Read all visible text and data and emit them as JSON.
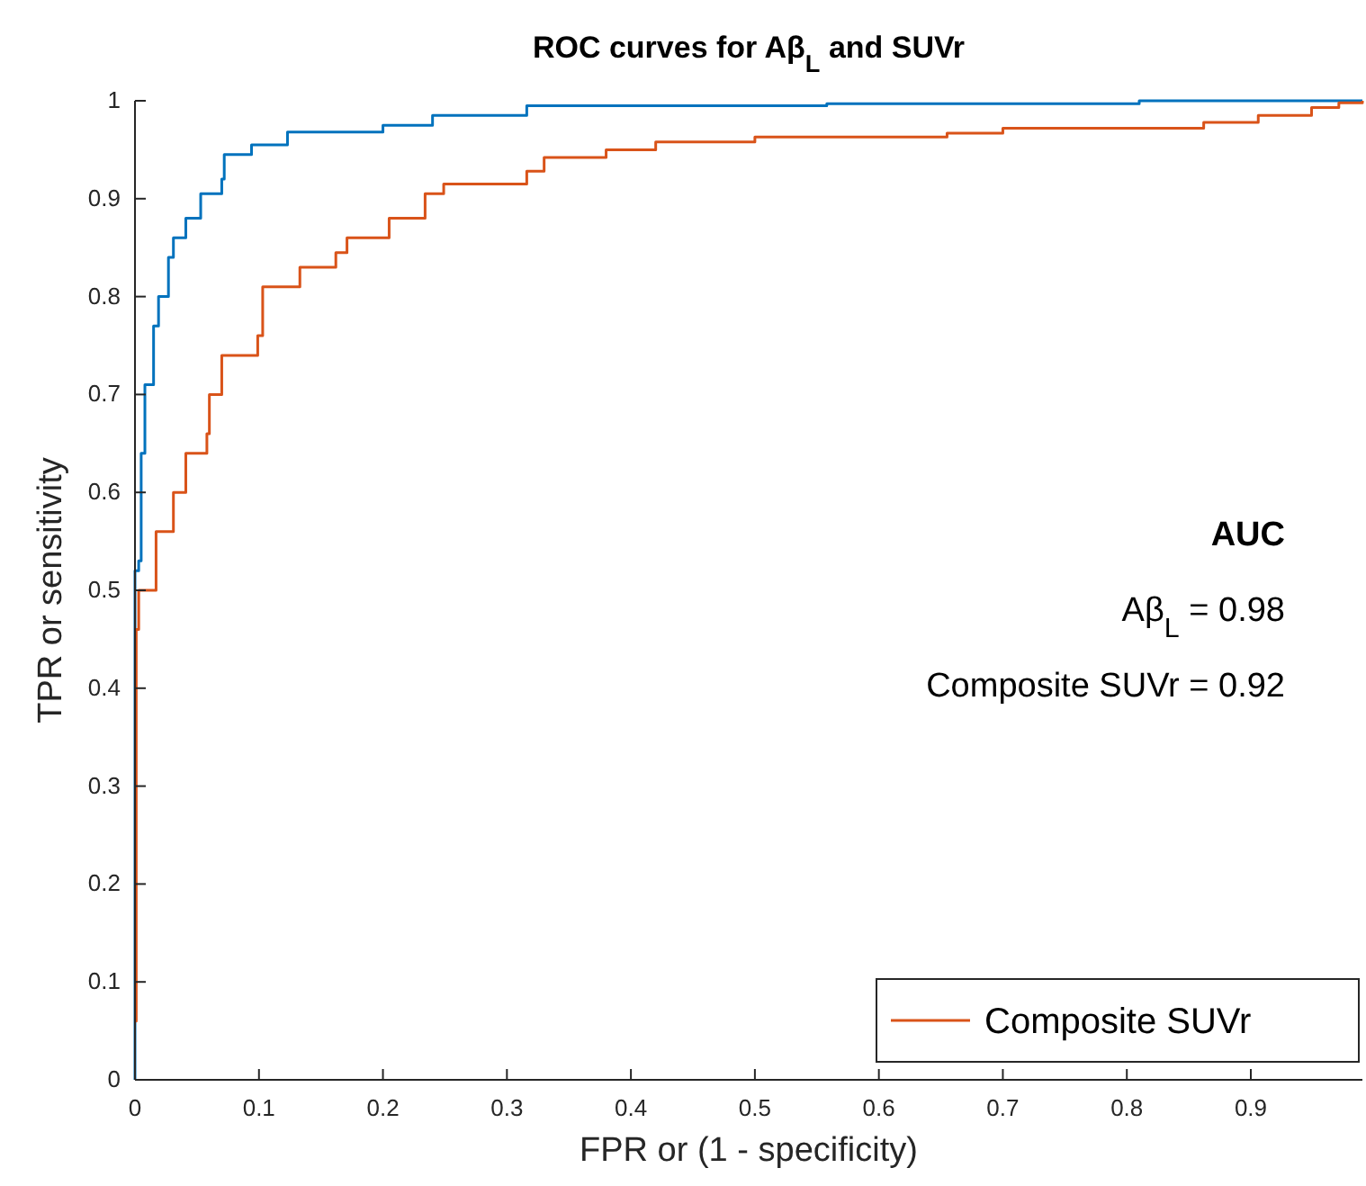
{
  "chart_data": {
    "type": "step",
    "title": "ROC curves for Aβ$_{L}$ and SUVr",
    "xlabel": "FPR  or (1 - specificity)",
    "ylabel": "TPR or  sensitivity",
    "annotations": [
      "AUC",
      "Aβ$_{L}$ = 0.98",
      "Composite SUVr = 0.92"
    ],
    "xlim": [
      0,
      0.99
    ],
    "ylim": [
      0,
      1
    ],
    "xticks": [
      0,
      0.1,
      0.2,
      0.3,
      0.4,
      0.5,
      0.6,
      0.7,
      0.8,
      0.9
    ],
    "yticks": [
      0,
      0.1,
      0.2,
      0.3,
      0.4,
      0.5,
      0.6,
      0.7,
      0.8,
      0.9,
      1
    ],
    "grid": false,
    "legend": "bottom right",
    "line_style": "solid",
    "marker": "none",
    "series": [
      {
        "color": "#0072bd",
        "x": [
          0,
          0,
          0.003,
          0.005,
          0.008,
          0.015,
          0.019,
          0.027,
          0.031,
          0.041,
          0.053,
          0.07,
          0.072,
          0.094,
          0.123,
          0.2,
          0.24,
          0.316,
          0.558,
          0.81,
          0.99
        ],
        "values": [
          0,
          0.52,
          0.53,
          0.64,
          0.71,
          0.77,
          0.8,
          0.84,
          0.86,
          0.88,
          0.905,
          0.92,
          0.945,
          0.955,
          0.968,
          0.975,
          0.985,
          0.995,
          0.997,
          1,
          1
        ]
      },
      {
        "name": "Composite SUVr",
        "color": "#d95319",
        "x": [
          0,
          0.001,
          0.003,
          0.017,
          0.031,
          0.041,
          0.058,
          0.06,
          0.07,
          0.099,
          0.103,
          0.133,
          0.162,
          0.171,
          0.205,
          0.234,
          0.249,
          0.316,
          0.33,
          0.38,
          0.42,
          0.5,
          0.655,
          0.7,
          0.862,
          0.906,
          0.949,
          0.971,
          0.99
        ],
        "values": [
          0.06,
          0.46,
          0.5,
          0.56,
          0.6,
          0.64,
          0.66,
          0.7,
          0.74,
          0.76,
          0.81,
          0.83,
          0.845,
          0.86,
          0.88,
          0.905,
          0.915,
          0.928,
          0.942,
          0.95,
          0.958,
          0.963,
          0.967,
          0.972,
          0.978,
          0.985,
          0.993,
          0.998,
          1
        ]
      }
    ]
  }
}
